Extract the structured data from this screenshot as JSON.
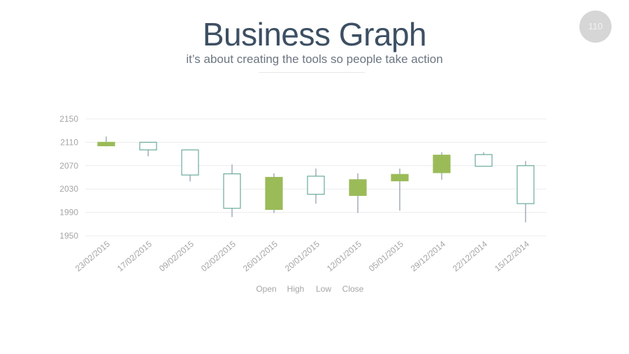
{
  "header": {
    "title": "Business Graph",
    "subtitle": "it’s about creating the tools so people take action",
    "page_number": "110"
  },
  "chart_data": {
    "type": "candlestick",
    "title": "",
    "yticks": [
      1950,
      1990,
      2030,
      2070,
      2110,
      2150
    ],
    "ylim": [
      1950,
      2150
    ],
    "grid": true,
    "legend": [
      "Open",
      "High",
      "Low",
      "Close"
    ],
    "legend_position": "bottom",
    "colors": {
      "up": "#6aab9c",
      "down": "#9bbb59",
      "wick": "#8a9aa8",
      "grid": "#ececec"
    },
    "categories": [
      "23/02/2015",
      "17/02/2015",
      "09/02/2015",
      "02/02/2015",
      "26/01/2015",
      "20/01/2015",
      "12/01/2015",
      "05/01/2015",
      "29/12/2014",
      "22/12/2014",
      "15/12/2014"
    ],
    "series": [
      {
        "open": 2110,
        "high": 2120,
        "low": 2103,
        "close": 2104
      },
      {
        "open": 2097,
        "high": 2110,
        "low": 2086,
        "close": 2110
      },
      {
        "open": 2054,
        "high": 2097,
        "low": 2043,
        "close": 2097
      },
      {
        "open": 1997,
        "high": 2072,
        "low": 1982,
        "close": 2056
      },
      {
        "open": 2050,
        "high": 2057,
        "low": 1989,
        "close": 1995
      },
      {
        "open": 2021,
        "high": 2065,
        "low": 2005,
        "close": 2052
      },
      {
        "open": 2046,
        "high": 2057,
        "low": 1989,
        "close": 2019
      },
      {
        "open": 2055,
        "high": 2065,
        "low": 1993,
        "close": 2044
      },
      {
        "open": 2088,
        "high": 2093,
        "low": 2046,
        "close": 2058
      },
      {
        "open": 2069,
        "high": 2093,
        "low": 2069,
        "close": 2089
      },
      {
        "open": 2005,
        "high": 2078,
        "low": 1973,
        "close": 2070
      }
    ]
  }
}
